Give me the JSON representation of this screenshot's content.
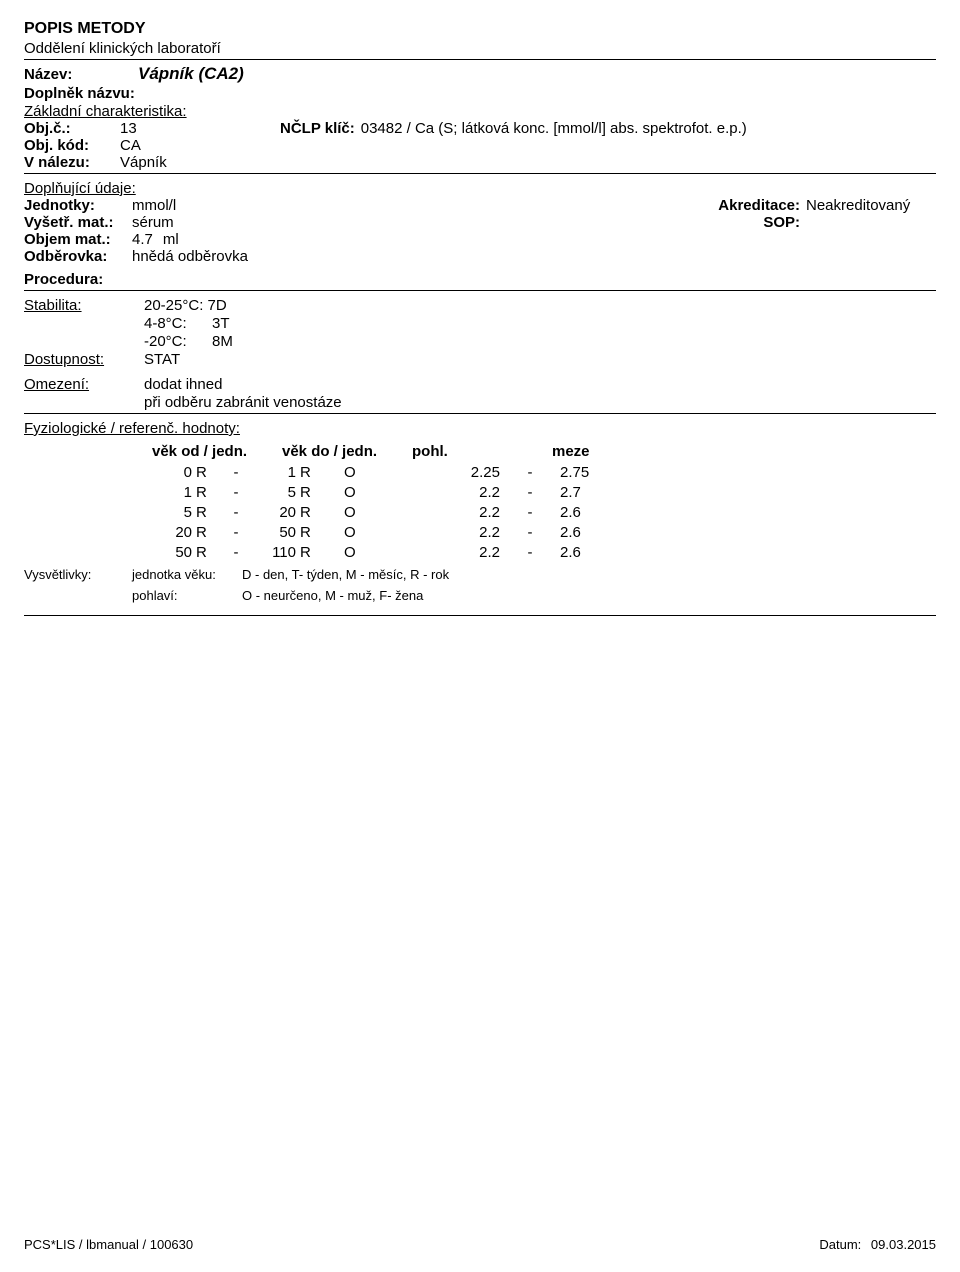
{
  "header": {
    "title": "POPIS METODY",
    "subtitle": "Oddělení klinických laboratoří"
  },
  "name": {
    "label": "Název:",
    "value": "Vápník (CA2)",
    "supplement_label": "Doplněk názvu:"
  },
  "basic": {
    "section": "Základní charakteristika:",
    "obj_c_label": "Obj.č.:",
    "obj_c_value": "13",
    "nclp_label": "NČLP klíč:",
    "nclp_value": "03482 / Ca (S; látková konc. [mmol/l] abs. spektrofot. e.p.)",
    "obj_kod_label": "Obj. kód:",
    "obj_kod_value": "CA",
    "v_nalezu_label": "V nálezu:",
    "v_nalezu_value": "Vápník"
  },
  "supp": {
    "section": "Doplňující údaje:",
    "units_label": "Jednotky:",
    "units_value": "mmol/l",
    "akred_label": "Akreditace:",
    "akred_value": "Neakreditovaný",
    "mat_label": "Vyšetř. mat.:",
    "mat_value": "sérum",
    "sop_label": "SOP:",
    "vol_label": "Objem mat.:",
    "vol_value": "4.7",
    "vol_unit": "ml",
    "tube_label": "Odběrovka:",
    "tube_value": "hnědá odběrovka",
    "proc_label": "Procedura:"
  },
  "stab": {
    "label": "Stabilita:",
    "line1": "20-25°C: 7D",
    "line2a": "4-8°C:",
    "line2b": "3T",
    "line3a": "-20°C:",
    "line3b": "8M"
  },
  "avail": {
    "label": "Dostupnost:",
    "value": "STAT"
  },
  "limit": {
    "label": "Omezení:",
    "line1": "dodat ihned",
    "line2": "při odběru zabránit venostáze"
  },
  "ref": {
    "section": "Fyziologické / referenč. hodnoty:",
    "head_age_from": "věk od / jedn.",
    "head_age_to": "věk do / jedn.",
    "head_sex": "pohl.",
    "head_range": "meze",
    "rows": [
      {
        "from_n": "0",
        "from_u": "R",
        "to_n": "1",
        "to_u": "R",
        "sex": "O",
        "lo": "2.25",
        "hi": "2.75"
      },
      {
        "from_n": "1",
        "from_u": "R",
        "to_n": "5",
        "to_u": "R",
        "sex": "O",
        "lo": "2.2",
        "hi": "2.7"
      },
      {
        "from_n": "5",
        "from_u": "R",
        "to_n": "20",
        "to_u": "R",
        "sex": "O",
        "lo": "2.2",
        "hi": "2.6"
      },
      {
        "from_n": "20",
        "from_u": "R",
        "to_n": "50",
        "to_u": "R",
        "sex": "O",
        "lo": "2.2",
        "hi": "2.6"
      },
      {
        "from_n": "50",
        "from_u": "R",
        "to_n": "110",
        "to_u": "R",
        "sex": "O",
        "lo": "2.2",
        "hi": "2.6"
      }
    ]
  },
  "legend": {
    "label": "Vysvětlivky:",
    "age_unit_label": "jednotka věku:",
    "age_unit_text": "D - den, T- týden, M - měsíc, R - rok",
    "sex_label": "pohlaví:",
    "sex_text": "O - neurčeno, M - muž, F- žena"
  },
  "footer": {
    "left": "PCS*LIS / lbmanual / 100630",
    "right_label": "Datum:",
    "right_value": "09.03.2015"
  }
}
